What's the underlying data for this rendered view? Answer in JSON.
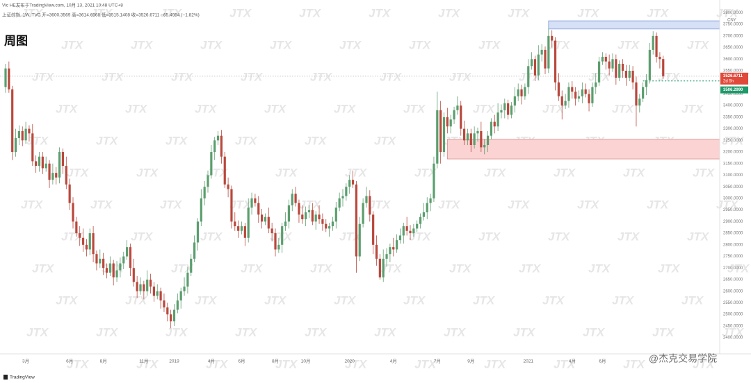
{
  "header": {
    "source": "Vic HE发布于TradingView.com, 10月 13, 2021 10:48 UTC+8",
    "symbol_line": "上证综指, 1W, TVC  开=3600.3569  高=3614.6968  低=3515.1408  收=3526.6711  −65.4954 (−1.82%)",
    "label": "周图"
  },
  "watermark": "JTX",
  "footer": "TradingView",
  "credit": "@杰克交易学院",
  "chart_data": {
    "type": "candlestick",
    "up_color": "#5b9e6e",
    "down_color": "#b9483d",
    "currency": "CNY",
    "grid": false,
    "ylim": [
      2330,
      3840
    ],
    "yticks": [
      {
        "value": 2400,
        "label": "2400.0000"
      },
      {
        "value": 2450,
        "label": "2450.0000"
      },
      {
        "value": 2500,
        "label": "2500.0000"
      },
      {
        "value": 2550,
        "label": "2550.0000"
      },
      {
        "value": 2600,
        "label": "2600.0000"
      },
      {
        "value": 2650,
        "label": "2650.0000"
      },
      {
        "value": 2700,
        "label": "2700.0000"
      },
      {
        "value": 2750,
        "label": "2750.0000"
      },
      {
        "value": 2800,
        "label": "2800.0000"
      },
      {
        "value": 2850,
        "label": "2850.0000"
      },
      {
        "value": 2900,
        "label": "2900.0000"
      },
      {
        "value": 2950,
        "label": "2950.0000"
      },
      {
        "value": 3000,
        "label": "3000.0000"
      },
      {
        "value": 3050,
        "label": "3050.0000"
      },
      {
        "value": 3100,
        "label": "3100.0000"
      },
      {
        "value": 3150,
        "label": "3150.0000"
      },
      {
        "value": 3200,
        "label": "3200.0000"
      },
      {
        "value": 3250,
        "label": "3250.0000"
      },
      {
        "value": 3300,
        "label": "3300.0000"
      },
      {
        "value": 3350,
        "label": "3350.0000"
      },
      {
        "value": 3400,
        "label": "3400.0000"
      },
      {
        "value": 3450,
        "label": "3450.0000"
      },
      {
        "value": 3500,
        "label": "3500.0000"
      },
      {
        "value": 3550,
        "label": "3550.0000"
      },
      {
        "value": 3600,
        "label": "3600.0000"
      },
      {
        "value": 3650,
        "label": "3650.0000"
      },
      {
        "value": 3700,
        "label": "3700.0000"
      },
      {
        "value": 3750,
        "label": "3750.0000"
      },
      {
        "value": 3800,
        "label": "3800.0000"
      }
    ],
    "categories": [
      null,
      null,
      null,
      null,
      null,
      null,
      "3月",
      null,
      null,
      null,
      null,
      null,
      null,
      null,
      null,
      null,
      null,
      null,
      null,
      "6月",
      null,
      null,
      null,
      null,
      null,
      null,
      null,
      null,
      null,
      "8月",
      null,
      null,
      null,
      null,
      null,
      null,
      null,
      null,
      null,
      null,
      null,
      "11月",
      null,
      null,
      null,
      null,
      null,
      null,
      null,
      null,
      "2019",
      null,
      null,
      null,
      null,
      null,
      null,
      null,
      null,
      null,
      null,
      "4月",
      null,
      null,
      null,
      null,
      null,
      null,
      null,
      null,
      "6月",
      null,
      null,
      null,
      null,
      null,
      null,
      null,
      null,
      null,
      "8月",
      null,
      null,
      null,
      null,
      null,
      null,
      null,
      null,
      "10月",
      null,
      null,
      null,
      null,
      null,
      null,
      null,
      null,
      null,
      null,
      null,
      null,
      "2020",
      null,
      null,
      null,
      null,
      null,
      null,
      null,
      null,
      null,
      null,
      null,
      null,
      "4月",
      null,
      null,
      null,
      null,
      null,
      null,
      null,
      null,
      null,
      null,
      null,
      null,
      "7月",
      null,
      null,
      null,
      null,
      null,
      null,
      null,
      null,
      null,
      "9月",
      null,
      null,
      null,
      null,
      null,
      null,
      null,
      null,
      null,
      null,
      null,
      null,
      null,
      null,
      null,
      null,
      "2021",
      null,
      null,
      null,
      null,
      null,
      null,
      null,
      null,
      null,
      null,
      null,
      null,
      "4月",
      null,
      null,
      null,
      null,
      null,
      null,
      null,
      null,
      "6月",
      null,
      null,
      null,
      null,
      null,
      null,
      null,
      null,
      null,
      null,
      null,
      null,
      null,
      null,
      null,
      null,
      null,
      null
    ],
    "candles": [
      [
        3480,
        3580,
        3455,
        3560
      ],
      [
        3560,
        3590,
        3455,
        3470
      ],
      [
        3470,
        3485,
        3165,
        3200
      ],
      [
        3200,
        3300,
        3180,
        3260
      ],
      [
        3260,
        3315,
        3230,
        3290
      ],
      [
        3290,
        3310,
        3225,
        3250
      ],
      [
        3250,
        3330,
        3235,
        3300
      ],
      [
        3300,
        3315,
        3245,
        3280
      ],
      [
        3280,
        3320,
        3140,
        3160
      ],
      [
        3160,
        3185,
        3110,
        3140
      ],
      [
        3140,
        3200,
        3115,
        3180
      ],
      [
        3180,
        3200,
        3105,
        3130
      ],
      [
        3130,
        3180,
        3115,
        3150
      ],
      [
        3150,
        3165,
        3045,
        3080
      ],
      [
        3080,
        3150,
        3060,
        3110
      ],
      [
        3110,
        3135,
        3060,
        3090
      ],
      [
        3090,
        3220,
        3065,
        3200
      ],
      [
        3200,
        3215,
        3105,
        3140
      ],
      [
        3140,
        3180,
        3040,
        3060
      ],
      [
        3060,
        3085,
        2950,
        2980
      ],
      [
        2980,
        3005,
        2870,
        2900
      ],
      [
        2900,
        2920,
        2835,
        2850
      ],
      [
        2850,
        2880,
        2795,
        2830
      ],
      [
        2830,
        2870,
        2770,
        2800
      ],
      [
        2800,
        2825,
        2750,
        2780
      ],
      [
        2780,
        2870,
        2755,
        2850
      ],
      [
        2850,
        2880,
        2725,
        2760
      ],
      [
        2760,
        2775,
        2690,
        2720
      ],
      [
        2720,
        2780,
        2700,
        2740
      ],
      [
        2740,
        2765,
        2670,
        2700
      ],
      [
        2700,
        2720,
        2655,
        2680
      ],
      [
        2680,
        2750,
        2665,
        2720
      ],
      [
        2720,
        2735,
        2625,
        2660
      ],
      [
        2660,
        2730,
        2640,
        2690
      ],
      [
        2690,
        2745,
        2660,
        2720
      ],
      [
        2720,
        2770,
        2695,
        2750
      ],
      [
        2750,
        2820,
        2735,
        2790
      ],
      [
        2790,
        2805,
        2665,
        2700
      ],
      [
        2700,
        2740,
        2620,
        2640
      ],
      [
        2640,
        2665,
        2570,
        2600
      ],
      [
        2600,
        2660,
        2585,
        2630
      ],
      [
        2630,
        2645,
        2565,
        2600
      ],
      [
        2600,
        2690,
        2580,
        2650
      ],
      [
        2650,
        2675,
        2590,
        2620
      ],
      [
        2620,
        2640,
        2555,
        2580
      ],
      [
        2580,
        2630,
        2565,
        2600
      ],
      [
        2600,
        2615,
        2525,
        2560
      ],
      [
        2560,
        2590,
        2510,
        2530
      ],
      [
        2530,
        2550,
        2470,
        2500
      ],
      [
        2500,
        2520,
        2440,
        2470
      ],
      [
        2470,
        2545,
        2450,
        2520
      ],
      [
        2520,
        2590,
        2505,
        2560
      ],
      [
        2560,
        2615,
        2525,
        2600
      ],
      [
        2600,
        2660,
        2580,
        2620
      ],
      [
        2620,
        2705,
        2590,
        2680
      ],
      [
        2680,
        2760,
        2665,
        2740
      ],
      [
        2740,
        2840,
        2725,
        2810
      ],
      [
        2810,
        2915,
        2775,
        2900
      ],
      [
        2900,
        3040,
        2880,
        3000
      ],
      [
        3000,
        3075,
        2970,
        3050
      ],
      [
        3050,
        3120,
        3025,
        3100
      ],
      [
        3100,
        3230,
        3085,
        3200
      ],
      [
        3200,
        3265,
        3165,
        3250
      ],
      [
        3250,
        3290,
        3230,
        3270
      ],
      [
        3270,
        3295,
        3150,
        3180
      ],
      [
        3180,
        3200,
        3045,
        3060
      ],
      [
        3060,
        3090,
        3005,
        3040
      ],
      [
        3040,
        3055,
        2870,
        2900
      ],
      [
        2900,
        2940,
        2860,
        2880
      ],
      [
        2880,
        2905,
        2830,
        2860
      ],
      [
        2860,
        2900,
        2845,
        2880
      ],
      [
        2880,
        2895,
        2795,
        2830
      ],
      [
        2830,
        3000,
        2810,
        2960
      ],
      [
        2960,
        3025,
        2930,
        3000
      ],
      [
        3000,
        3020,
        2965,
        2980
      ],
      [
        2980,
        3010,
        2895,
        2930
      ],
      [
        2930,
        2955,
        2870,
        2900
      ],
      [
        2900,
        2935,
        2885,
        2920
      ],
      [
        2920,
        2960,
        2850,
        2870
      ],
      [
        2870,
        2895,
        2815,
        2850
      ],
      [
        2850,
        2870,
        2750,
        2780
      ],
      [
        2780,
        2830,
        2765,
        2800
      ],
      [
        2800,
        2895,
        2765,
        2880
      ],
      [
        2880,
        2940,
        2860,
        2900
      ],
      [
        2900,
        2995,
        2870,
        2970
      ],
      [
        2970,
        3040,
        2945,
        3020
      ],
      [
        3020,
        3050,
        2965,
        2980
      ],
      [
        2980,
        2995,
        2895,
        2930
      ],
      [
        2930,
        2970,
        2890,
        2910
      ],
      [
        2910,
        2965,
        2880,
        2940
      ],
      [
        2940,
        2970,
        2915,
        2950
      ],
      [
        2950,
        2980,
        2885,
        2900
      ],
      [
        2900,
        2945,
        2865,
        2930
      ],
      [
        2930,
        2970,
        2890,
        2910
      ],
      [
        2910,
        2935,
        2860,
        2890
      ],
      [
        2890,
        2910,
        2855,
        2870
      ],
      [
        2870,
        2895,
        2835,
        2880
      ],
      [
        2880,
        2920,
        2860,
        2900
      ],
      [
        2900,
        2985,
        2870,
        2960
      ],
      [
        2960,
        3025,
        2945,
        3000
      ],
      [
        3000,
        3040,
        2965,
        3010
      ],
      [
        3010,
        3065,
        2990,
        3050
      ],
      [
        3050,
        3100,
        3020,
        3080
      ],
      [
        3080,
        3120,
        3045,
        3060
      ],
      [
        3060,
        3075,
        2680,
        2750
      ],
      [
        2750,
        2920,
        2730,
        2890
      ],
      [
        2890,
        3000,
        2875,
        2980
      ],
      [
        2980,
        3050,
        2960,
        3010
      ],
      [
        3010,
        3035,
        2900,
        2930
      ],
      [
        2930,
        2945,
        2760,
        2800
      ],
      [
        2800,
        2840,
        2710,
        2740
      ],
      [
        2740,
        2760,
        2650,
        2660
      ],
      [
        2660,
        2780,
        2640,
        2740
      ],
      [
        2740,
        2785,
        2705,
        2760
      ],
      [
        2760,
        2805,
        2725,
        2790
      ],
      [
        2790,
        2830,
        2750,
        2780
      ],
      [
        2780,
        2845,
        2765,
        2820
      ],
      [
        2820,
        2870,
        2805,
        2840
      ],
      [
        2840,
        2895,
        2805,
        2880
      ],
      [
        2880,
        2920,
        2840,
        2860
      ],
      [
        2860,
        2885,
        2820,
        2850
      ],
      [
        2850,
        2890,
        2835,
        2870
      ],
      [
        2870,
        2905,
        2855,
        2890
      ],
      [
        2890,
        2935,
        2870,
        2920
      ],
      [
        2920,
        2980,
        2905,
        2940
      ],
      [
        2940,
        3005,
        2910,
        2980
      ],
      [
        2980,
        3020,
        2945,
        3000
      ],
      [
        3000,
        3180,
        2985,
        3150
      ],
      [
        3150,
        3460,
        3130,
        3380
      ],
      [
        3380,
        3420,
        3150,
        3200
      ],
      [
        3200,
        3370,
        3180,
        3350
      ],
      [
        3350,
        3390,
        3280,
        3310
      ],
      [
        3310,
        3360,
        3280,
        3340
      ],
      [
        3340,
        3395,
        3320,
        3380
      ],
      [
        3380,
        3440,
        3360,
        3400
      ],
      [
        3400,
        3420,
        3270,
        3300
      ],
      [
        3300,
        3335,
        3230,
        3250
      ],
      [
        3250,
        3300,
        3230,
        3280
      ],
      [
        3280,
        3300,
        3200,
        3230
      ],
      [
        3230,
        3310,
        3215,
        3280
      ],
      [
        3280,
        3305,
        3245,
        3290
      ],
      [
        3290,
        3330,
        3200,
        3220
      ],
      [
        3220,
        3255,
        3190,
        3230
      ],
      [
        3230,
        3290,
        3200,
        3270
      ],
      [
        3270,
        3345,
        3255,
        3330
      ],
      [
        3330,
        3360,
        3280,
        3310
      ],
      [
        3310,
        3410,
        3290,
        3370
      ],
      [
        3370,
        3405,
        3345,
        3380
      ],
      [
        3380,
        3430,
        3345,
        3410
      ],
      [
        3410,
        3425,
        3340,
        3360
      ],
      [
        3360,
        3415,
        3345,
        3400
      ],
      [
        3400,
        3480,
        3370,
        3440
      ],
      [
        3440,
        3495,
        3420,
        3470
      ],
      [
        3470,
        3490,
        3405,
        3440
      ],
      [
        3440,
        3495,
        3425,
        3480
      ],
      [
        3480,
        3600,
        3450,
        3570
      ],
      [
        3570,
        3630,
        3555,
        3600
      ],
      [
        3600,
        3615,
        3505,
        3530
      ],
      [
        3530,
        3660,
        3510,
        3620
      ],
      [
        3620,
        3665,
        3590,
        3640
      ],
      [
        3640,
        3655,
        3535,
        3560
      ],
      [
        3560,
        3730,
        3540,
        3700
      ],
      [
        3700,
        3725,
        3650,
        3680
      ],
      [
        3680,
        3695,
        3465,
        3500
      ],
      [
        3500,
        3540,
        3420,
        3440
      ],
      [
        3440,
        3465,
        3340,
        3400
      ],
      [
        3400,
        3450,
        3385,
        3420
      ],
      [
        3420,
        3500,
        3390,
        3480
      ],
      [
        3480,
        3505,
        3430,
        3460
      ],
      [
        3460,
        3480,
        3400,
        3430
      ],
      [
        3430,
        3465,
        3415,
        3440
      ],
      [
        3440,
        3500,
        3410,
        3470
      ],
      [
        3470,
        3495,
        3435,
        3450
      ],
      [
        3450,
        3470,
        3375,
        3410
      ],
      [
        3410,
        3500,
        3395,
        3480
      ],
      [
        3480,
        3540,
        3450,
        3500
      ],
      [
        3500,
        3610,
        3485,
        3590
      ],
      [
        3590,
        3630,
        3575,
        3610
      ],
      [
        3610,
        3625,
        3555,
        3590
      ],
      [
        3590,
        3620,
        3530,
        3560
      ],
      [
        3560,
        3625,
        3545,
        3600
      ],
      [
        3600,
        3620,
        3490,
        3520
      ],
      [
        3520,
        3595,
        3505,
        3580
      ],
      [
        3580,
        3600,
        3520,
        3550
      ],
      [
        3550,
        3575,
        3485,
        3520
      ],
      [
        3520,
        3575,
        3505,
        3550
      ],
      [
        3550,
        3570,
        3470,
        3500
      ],
      [
        3500,
        3525,
        3310,
        3400
      ],
      [
        3400,
        3450,
        3370,
        3430
      ],
      [
        3430,
        3500,
        3415,
        3480
      ],
      [
        3480,
        3535,
        3445,
        3510
      ],
      [
        3510,
        3670,
        3495,
        3640
      ],
      [
        3640,
        3720,
        3620,
        3700
      ],
      [
        3700,
        3715,
        3585,
        3610
      ],
      [
        3610,
        3630,
        3560,
        3600
      ],
      [
        3600.3569,
        3614.6968,
        3515.1408,
        3526.6711
      ]
    ],
    "zones": [
      {
        "start": 161,
        "low": 3730,
        "high": 3765,
        "fill": "#d6e0f7",
        "stroke": "#7f98d6"
      },
      {
        "start": 131,
        "low": 3170,
        "high": 3255,
        "fill": "#fbd3d3",
        "stroke": "#d98a8a"
      }
    ],
    "last_price": {
      "value": 3526.6711,
      "label": "3526.6711",
      "countdown": "2d 5h",
      "color": "#e04a3b"
    },
    "level": {
      "value": 3506.299,
      "label": "3506.2990",
      "start": 189,
      "color": "#1e9a6a"
    }
  }
}
